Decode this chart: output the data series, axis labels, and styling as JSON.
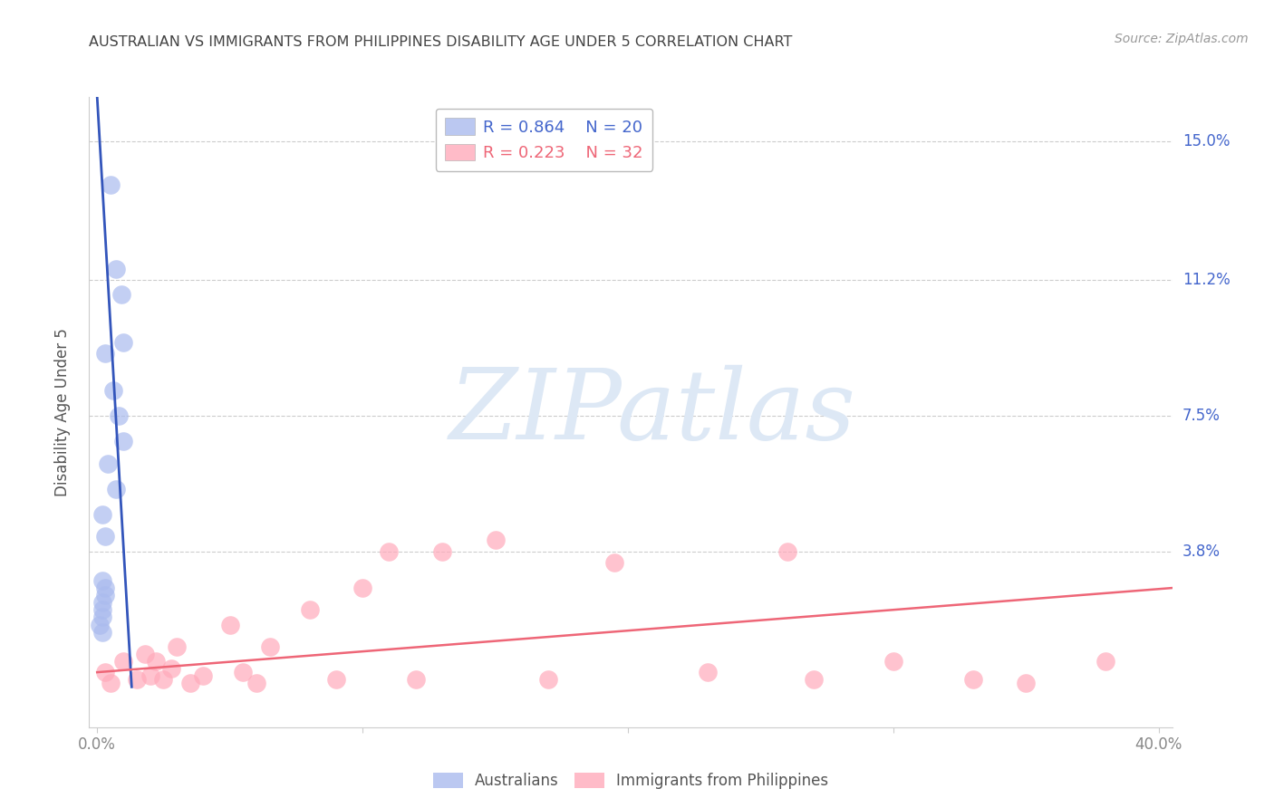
{
  "title": "AUSTRALIAN VS IMMIGRANTS FROM PHILIPPINES DISABILITY AGE UNDER 5 CORRELATION CHART",
  "source": "Source: ZipAtlas.com",
  "ylabel": "Disability Age Under 5",
  "ytick_labels": [
    "15.0%",
    "11.2%",
    "7.5%",
    "3.8%"
  ],
  "ytick_values": [
    0.15,
    0.112,
    0.075,
    0.038
  ],
  "xlim": [
    -0.003,
    0.405
  ],
  "ylim": [
    -0.01,
    0.162
  ],
  "blue_color": "#aabbee",
  "pink_color": "#ffaabb",
  "line_blue": "#3355bb",
  "line_pink": "#ee6677",
  "watermark_color": "#dde8f5",
  "grid_color": "#cccccc",
  "background_color": "#ffffff",
  "title_color": "#444444",
  "source_color": "#999999",
  "ytick_color": "#4466cc",
  "xtick_color": "#888888",
  "legend_r_blue": "R = 0.864",
  "legend_n_blue": "N = 20",
  "legend_r_pink": "R = 0.223",
  "legend_n_pink": "N = 32",
  "legend_blue_color": "#4466cc",
  "legend_pink_color": "#ee6677",
  "blue_scatter_x": [
    0.005,
    0.007,
    0.009,
    0.01,
    0.003,
    0.006,
    0.008,
    0.01,
    0.004,
    0.007,
    0.002,
    0.003,
    0.002,
    0.003,
    0.003,
    0.002,
    0.002,
    0.002,
    0.001,
    0.002
  ],
  "blue_scatter_y": [
    0.138,
    0.115,
    0.108,
    0.095,
    0.092,
    0.082,
    0.075,
    0.068,
    0.062,
    0.055,
    0.048,
    0.042,
    0.03,
    0.028,
    0.026,
    0.024,
    0.022,
    0.02,
    0.018,
    0.016
  ],
  "pink_scatter_x": [
    0.003,
    0.005,
    0.01,
    0.015,
    0.018,
    0.02,
    0.022,
    0.025,
    0.028,
    0.03,
    0.035,
    0.04,
    0.05,
    0.055,
    0.06,
    0.065,
    0.08,
    0.09,
    0.1,
    0.11,
    0.12,
    0.13,
    0.15,
    0.17,
    0.195,
    0.23,
    0.26,
    0.27,
    0.3,
    0.33,
    0.35,
    0.38
  ],
  "pink_scatter_y": [
    0.005,
    0.002,
    0.008,
    0.003,
    0.01,
    0.004,
    0.008,
    0.003,
    0.006,
    0.012,
    0.002,
    0.004,
    0.018,
    0.005,
    0.002,
    0.012,
    0.022,
    0.003,
    0.028,
    0.038,
    0.003,
    0.038,
    0.041,
    0.003,
    0.035,
    0.005,
    0.038,
    0.003,
    0.008,
    0.003,
    0.002,
    0.008
  ],
  "blue_line_x0": 0.0,
  "blue_line_x1": 0.013,
  "blue_line_y0": 0.162,
  "blue_line_y1": 0.001,
  "pink_line_x0": 0.0,
  "pink_line_x1": 0.405,
  "pink_line_y0": 0.005,
  "pink_line_y1": 0.028
}
